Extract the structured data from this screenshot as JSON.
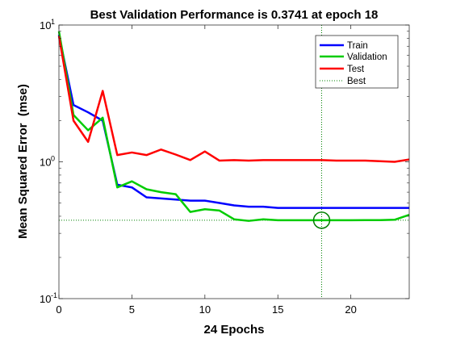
{
  "chart_data": {
    "type": "line",
    "title": "Best Validation Performance is 0.3741 at epoch 18",
    "xlabel": "24 Epochs",
    "ylabel": "Mean Squared Error  (mse)",
    "yscale": "log",
    "xlim": [
      0,
      24
    ],
    "ylim": [
      0.1,
      10
    ],
    "grid": false,
    "legend_position": "top-right",
    "x_ticks": [
      0,
      5,
      10,
      15,
      20
    ],
    "y_ticks": [
      {
        "value": 0.1,
        "base": "10",
        "exp": "-1"
      },
      {
        "value": 1,
        "base": "10",
        "exp": "0"
      },
      {
        "value": 10,
        "base": "10",
        "exp": "1"
      }
    ],
    "series": [
      {
        "name": "Train",
        "color": "#0000ff",
        "x": [
          0,
          1,
          2,
          3,
          4,
          5,
          6,
          7,
          8,
          9,
          10,
          11,
          12,
          13,
          14,
          15,
          16,
          17,
          18,
          19,
          20,
          21,
          22,
          23,
          24
        ],
        "y": [
          8.5,
          2.6,
          2.3,
          2.0,
          0.68,
          0.65,
          0.55,
          0.54,
          0.53,
          0.52,
          0.52,
          0.5,
          0.48,
          0.47,
          0.47,
          0.46,
          0.46,
          0.46,
          0.46,
          0.46,
          0.46,
          0.46,
          0.46,
          0.46,
          0.46
        ]
      },
      {
        "name": "Validation",
        "color": "#00cc00",
        "x": [
          0,
          1,
          2,
          3,
          4,
          5,
          6,
          7,
          8,
          9,
          10,
          11,
          12,
          13,
          14,
          15,
          16,
          17,
          18,
          19,
          20,
          21,
          22,
          23,
          24
        ],
        "y": [
          9.0,
          2.2,
          1.7,
          2.1,
          0.65,
          0.72,
          0.63,
          0.6,
          0.58,
          0.43,
          0.45,
          0.44,
          0.38,
          0.37,
          0.38,
          0.374,
          0.374,
          0.374,
          0.3741,
          0.374,
          0.374,
          0.375,
          0.375,
          0.377,
          0.41
        ]
      },
      {
        "name": "Test",
        "color": "#ff0000",
        "x": [
          0,
          1,
          2,
          3,
          4,
          5,
          6,
          7,
          8,
          9,
          10,
          11,
          12,
          13,
          14,
          15,
          16,
          17,
          18,
          19,
          20,
          21,
          22,
          23,
          24
        ],
        "y": [
          8.3,
          2.0,
          1.4,
          3.3,
          1.12,
          1.17,
          1.12,
          1.23,
          1.13,
          1.03,
          1.19,
          1.02,
          1.03,
          1.02,
          1.03,
          1.03,
          1.03,
          1.03,
          1.03,
          1.02,
          1.02,
          1.02,
          1.01,
          1.0,
          1.04
        ]
      }
    ],
    "best": {
      "name": "Best",
      "color": "#008000",
      "epoch": 18,
      "value": 0.3741
    }
  }
}
